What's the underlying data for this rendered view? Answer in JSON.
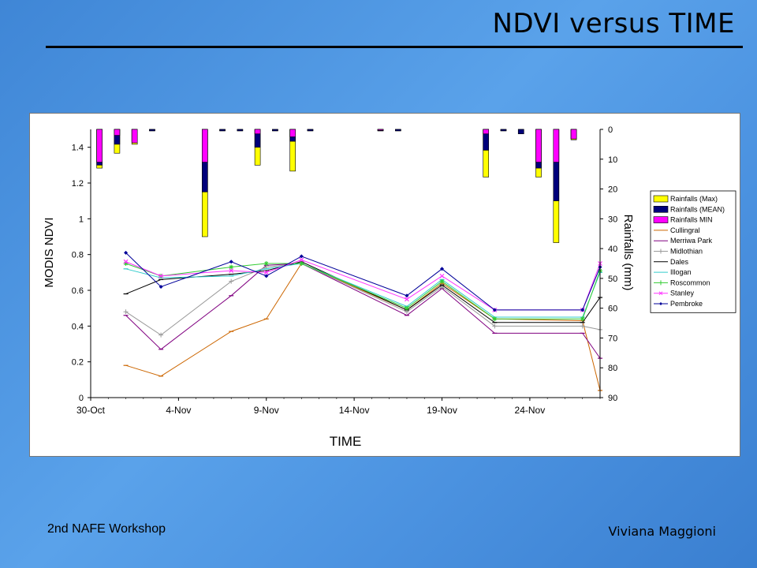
{
  "slide": {
    "title": "NDVI versus TIME",
    "footer_left": "2nd NAFE Workshop",
    "footer_right": "Viviana Maggioni"
  },
  "chart_data": {
    "type": "line",
    "xlabel": "TIME",
    "ylabel": "MODIS NDVI",
    "y2label": "Rainfalls (mm)",
    "ylim": [
      0,
      1.5
    ],
    "y2lim": [
      0,
      90
    ],
    "y2_inverted": true,
    "xlim": [
      0,
      29
    ],
    "x_ticks": [
      {
        "day": 0,
        "label": "30-Oct"
      },
      {
        "day": 5,
        "label": "4-Nov"
      },
      {
        "day": 10,
        "label": "9-Nov"
      },
      {
        "day": 15,
        "label": "14-Nov"
      },
      {
        "day": 20,
        "label": "19-Nov"
      },
      {
        "day": 25,
        "label": "24-Nov"
      }
    ],
    "y_ticks": [
      "0",
      "0.2",
      "0.4",
      "0.6",
      "0.8",
      "1",
      "1.2",
      "1.4"
    ],
    "y2_ticks": [
      "0",
      "10",
      "20",
      "30",
      "40",
      "50",
      "60",
      "70",
      "80",
      "90"
    ],
    "legend_position": "right",
    "grid": false,
    "rain_days": [
      0.5,
      1.5,
      2.5,
      3.5,
      6.5,
      7.5,
      8.5,
      9.5,
      10.5,
      11.5,
      12.5,
      16.5,
      17.5,
      22.5,
      23.5,
      24.5,
      25.5,
      26.5,
      27.5,
      28.5
    ],
    "rain_series": [
      {
        "name": "Rainfalls (Max)",
        "color": "#ffff00",
        "values": [
          13,
          8,
          5,
          0.5,
          36,
          0.5,
          0.5,
          12,
          0.5,
          14,
          0.5,
          0.5,
          0.5,
          16,
          0.5,
          1.5,
          16,
          38,
          3.5,
          0
        ]
      },
      {
        "name": "Rainfalls (MEAN)",
        "color": "#00007a",
        "values": [
          12,
          5,
          4,
          0.5,
          21,
          0.5,
          0.5,
          6,
          0.5,
          4,
          0.5,
          0.5,
          0.5,
          7,
          0.5,
          1.5,
          13,
          24,
          3,
          0
        ]
      },
      {
        "name": "Rainfalls MIN",
        "color": "#ff00ff",
        "values": [
          11,
          2,
          4.5,
          0,
          11,
          0,
          0,
          1.5,
          0,
          2.5,
          0,
          0.3,
          0,
          1.5,
          0,
          0,
          11,
          11,
          3.2,
          0
        ]
      }
    ],
    "ndvi_days": [
      2,
      4,
      8,
      10,
      12,
      18,
      20,
      23,
      28,
      29
    ],
    "series": [
      {
        "name": "Cullingral",
        "color": "#cc6600",
        "marker": "dash",
        "values": [
          0.18,
          0.12,
          0.37,
          0.44,
          0.75,
          0.49,
          0.64,
          0.44,
          0.43,
          0.04
        ]
      },
      {
        "name": "Merriwa Park",
        "color": "#800080",
        "marker": "dash",
        "values": [
          0.46,
          0.27,
          0.57,
          0.74,
          0.75,
          0.46,
          0.61,
          0.36,
          0.36,
          0.22
        ]
      },
      {
        "name": "Midlothian",
        "color": "#999999",
        "marker": "plus",
        "values": [
          0.48,
          0.35,
          0.65,
          0.73,
          0.75,
          0.48,
          0.62,
          0.4,
          0.4,
          0.38
        ]
      },
      {
        "name": "Dales",
        "color": "#000000",
        "marker": "dash",
        "values": [
          0.58,
          0.66,
          0.69,
          0.71,
          0.76,
          0.49,
          0.63,
          0.42,
          0.42,
          0.56
        ]
      },
      {
        "name": "Illogan",
        "color": "#33cccc",
        "marker": "dash",
        "values": [
          0.72,
          0.67,
          0.68,
          0.72,
          0.75,
          0.51,
          0.66,
          0.45,
          0.45,
          0.7
        ]
      },
      {
        "name": "Roscommon",
        "color": "#33cc33",
        "marker": "star",
        "values": [
          0.75,
          0.68,
          0.73,
          0.75,
          0.75,
          0.5,
          0.65,
          0.44,
          0.44,
          0.71
        ]
      },
      {
        "name": "Stanley",
        "color": "#ff33ff",
        "marker": "x",
        "values": [
          0.76,
          0.68,
          0.71,
          0.7,
          0.77,
          0.55,
          0.68,
          0.49,
          0.49,
          0.75
        ]
      },
      {
        "name": "Pembroke",
        "color": "#000099",
        "marker": "diamond",
        "values": [
          0.81,
          0.62,
          0.76,
          0.68,
          0.79,
          0.57,
          0.72,
          0.49,
          0.49,
          0.73
        ]
      }
    ]
  }
}
